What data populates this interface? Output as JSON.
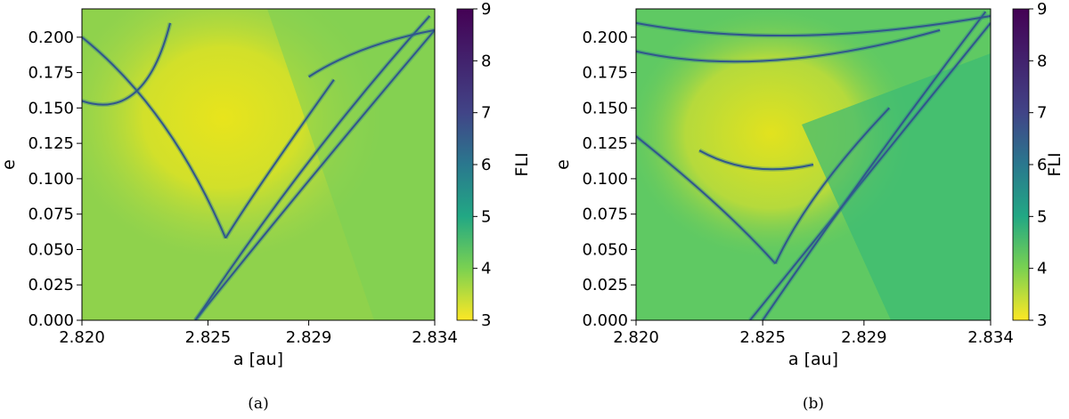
{
  "chart_data": [
    {
      "type": "heatmap",
      "panel_label": "(a)",
      "xlabel": "a [au]",
      "ylabel": "e",
      "colorbar_label": "FLI",
      "x_ticks": [
        "2.820",
        "2.825",
        "2.829",
        "2.834"
      ],
      "x_tick_values": [
        2.82,
        2.825,
        2.829,
        2.834
      ],
      "y_ticks": [
        "0.000",
        "0.025",
        "0.050",
        "0.075",
        "0.100",
        "0.125",
        "0.150",
        "0.175",
        "0.200"
      ],
      "y_tick_values": [
        0.0,
        0.025,
        0.05,
        0.075,
        0.1,
        0.125,
        0.15,
        0.175,
        0.2
      ],
      "xlim": [
        2.82,
        2.834
      ],
      "ylim": [
        0.0,
        0.22
      ],
      "colorbar_ticks": [
        "3",
        "4",
        "5",
        "6",
        "7",
        "8",
        "9"
      ],
      "colorbar_range": [
        3,
        9
      ],
      "colormap": "viridis_r",
      "resonance_curves": [
        {
          "from": [
            2.82,
            0.2
          ],
          "control": [
            2.8235,
            0.15
          ],
          "to": [
            2.8257,
            0.058
          ]
        },
        {
          "from": [
            2.8257,
            0.058
          ],
          "control": [
            2.8268,
            0.09
          ],
          "to": [
            2.83,
            0.17
          ]
        },
        {
          "from": [
            2.8245,
            0.0
          ],
          "control": [
            2.829,
            0.1
          ],
          "to": [
            2.834,
            0.205
          ]
        },
        {
          "from": [
            2.8245,
            0.0
          ],
          "control": [
            2.829,
            0.12
          ],
          "to": [
            2.8338,
            0.215
          ]
        },
        {
          "from": [
            2.82,
            0.155
          ],
          "control": [
            2.8225,
            0.14
          ],
          "to": [
            2.8235,
            0.21
          ]
        },
        {
          "from": [
            2.829,
            0.172
          ],
          "control": [
            2.831,
            0.195
          ],
          "to": [
            2.834,
            0.205
          ]
        }
      ]
    },
    {
      "type": "heatmap",
      "panel_label": "(b)",
      "xlabel": "a [au]",
      "ylabel": "e",
      "colorbar_label": "FLI",
      "x_ticks": [
        "2.820",
        "2.825",
        "2.829",
        "2.834"
      ],
      "x_tick_values": [
        2.82,
        2.825,
        2.829,
        2.834
      ],
      "y_ticks": [
        "0.000",
        "0.025",
        "0.050",
        "0.075",
        "0.100",
        "0.125",
        "0.150",
        "0.175",
        "0.200"
      ],
      "y_tick_values": [
        0.0,
        0.025,
        0.05,
        0.075,
        0.1,
        0.125,
        0.15,
        0.175,
        0.2
      ],
      "xlim": [
        2.82,
        2.834
      ],
      "ylim": [
        0.0,
        0.22
      ],
      "colorbar_ticks": [
        "3",
        "4",
        "5",
        "6",
        "7",
        "8",
        "9"
      ],
      "colorbar_range": [
        3,
        9
      ],
      "colormap": "viridis_r",
      "resonance_curves": [
        {
          "from": [
            2.82,
            0.13
          ],
          "control": [
            2.8235,
            0.08
          ],
          "to": [
            2.8255,
            0.04
          ]
        },
        {
          "from": [
            2.8255,
            0.04
          ],
          "control": [
            2.8268,
            0.09
          ],
          "to": [
            2.83,
            0.15
          ]
        },
        {
          "from": [
            2.8245,
            0.0
          ],
          "control": [
            2.829,
            0.1
          ],
          "to": [
            2.834,
            0.21
          ]
        },
        {
          "from": [
            2.825,
            0.0
          ],
          "control": [
            2.8292,
            0.11
          ],
          "to": [
            2.8338,
            0.218
          ]
        },
        {
          "from": [
            2.82,
            0.21
          ],
          "control": [
            2.826,
            0.19
          ],
          "to": [
            2.834,
            0.215
          ]
        },
        {
          "from": [
            2.82,
            0.19
          ],
          "control": [
            2.825,
            0.17
          ],
          "to": [
            2.832,
            0.205
          ]
        },
        {
          "from": [
            2.8225,
            0.12
          ],
          "control": [
            2.8245,
            0.1
          ],
          "to": [
            2.827,
            0.11
          ]
        }
      ]
    }
  ]
}
